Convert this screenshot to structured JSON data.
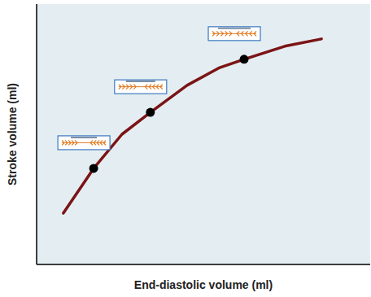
{
  "chart_data": {
    "type": "line",
    "x_label": "End-diastolic volume (ml)",
    "y_label": "Stroke volume (ml)",
    "xlim": [
      0,
      100
    ],
    "ylim": [
      0,
      100
    ],
    "tick_labels": false,
    "series": [
      {
        "type": "line",
        "color": "#7b1416",
        "line_style": "solid",
        "x": [
          8.0,
          17.1,
          25.6,
          34.1,
          45.1,
          54.9,
          62.2,
          74.4,
          85.4
        ],
        "values": [
          19.7,
          36.9,
          50.0,
          58.4,
          68.8,
          75.6,
          78.8,
          83.8,
          86.6
        ]
      },
      {
        "type": "scatter",
        "color": "#000000",
        "marker": "circle",
        "x": [
          17.1,
          34.1,
          62.2
        ],
        "values": [
          36.9,
          58.4,
          78.8
        ]
      }
    ]
  }
}
